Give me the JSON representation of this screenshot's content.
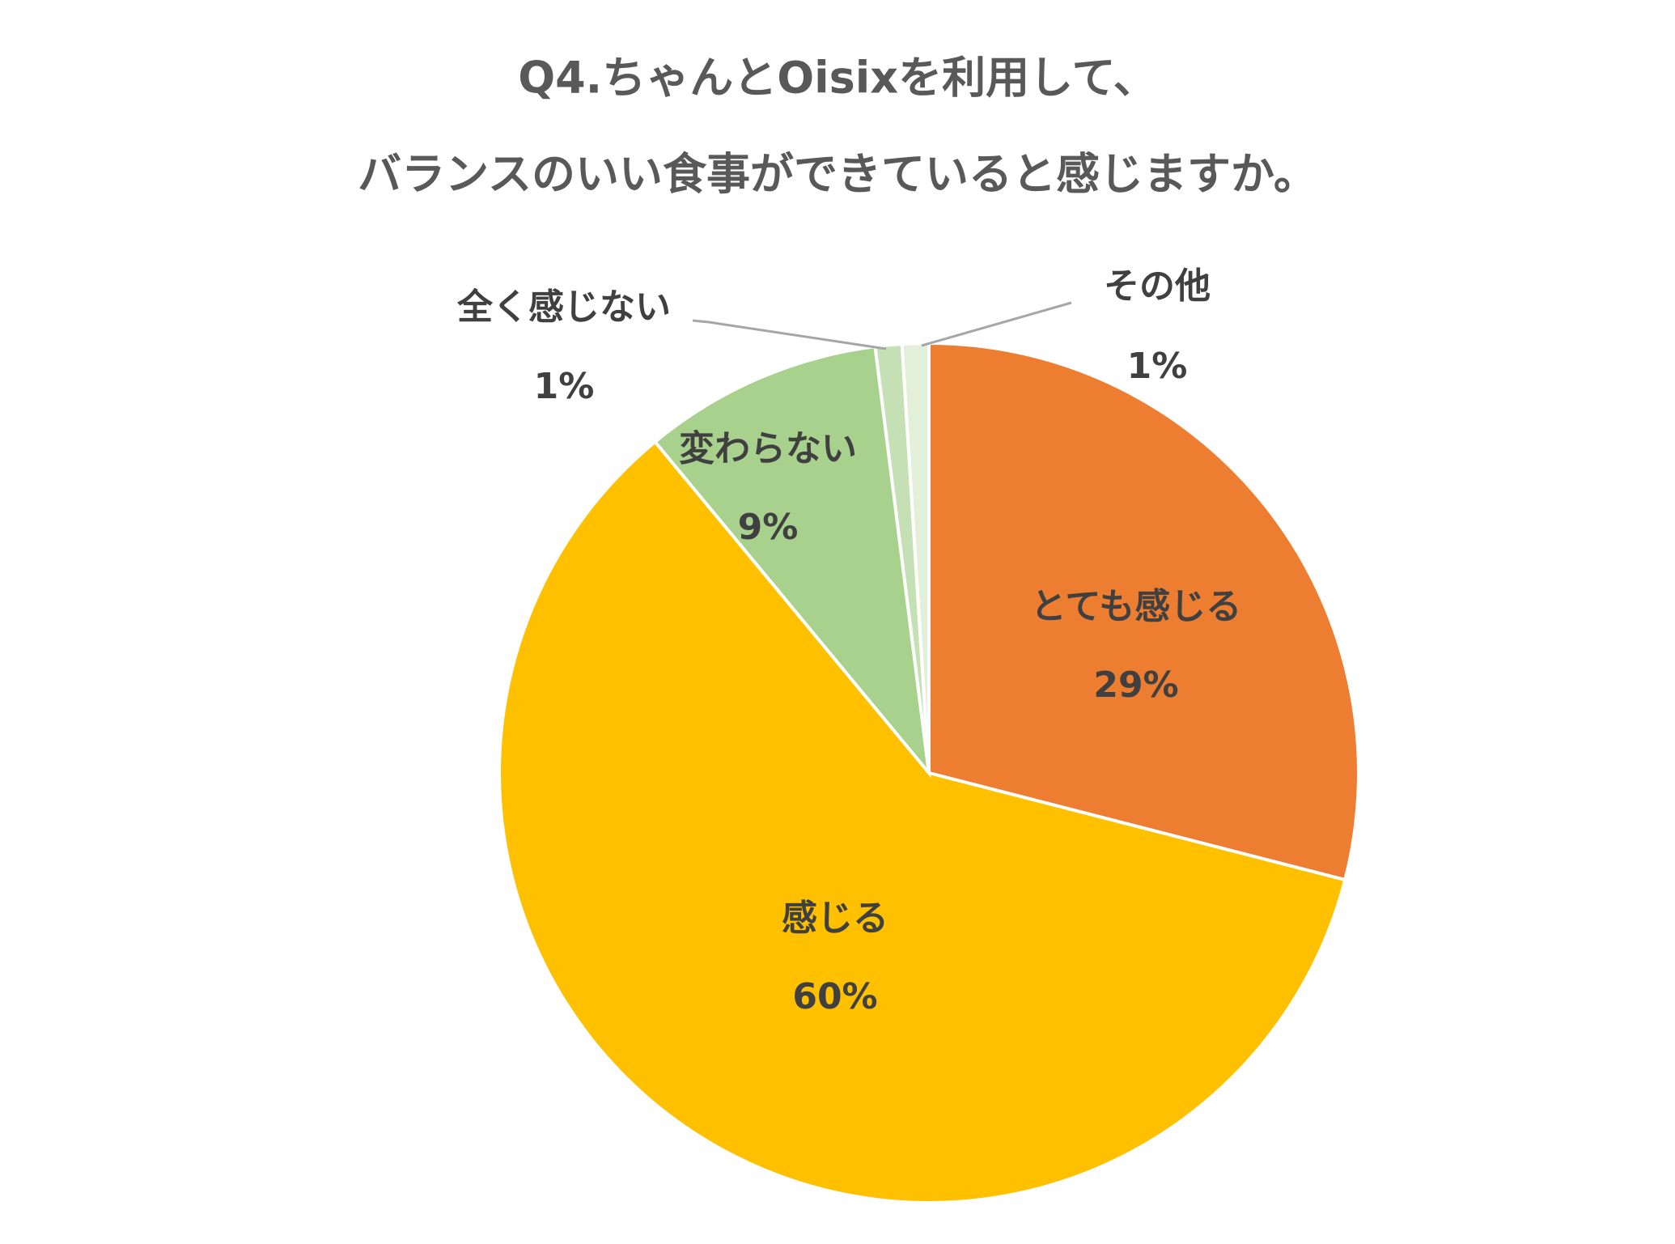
{
  "chart_data": {
    "type": "pie",
    "title": [
      "Q4.ちゃんとOisixを利用して、",
      "バランスのいい食事ができていると感じますか。"
    ],
    "categories": [
      "とても感じる",
      "感じる",
      "変わらない",
      "全く感じない",
      "その他"
    ],
    "values": [
      29,
      60,
      9,
      1,
      1
    ],
    "value_labels": [
      "29%",
      "60%",
      "9%",
      "1%",
      "1%"
    ],
    "colors": [
      "#ED7D31",
      "#FFC000",
      "#A9D18E",
      "#C5E0B4",
      "#E2F0D9"
    ]
  }
}
